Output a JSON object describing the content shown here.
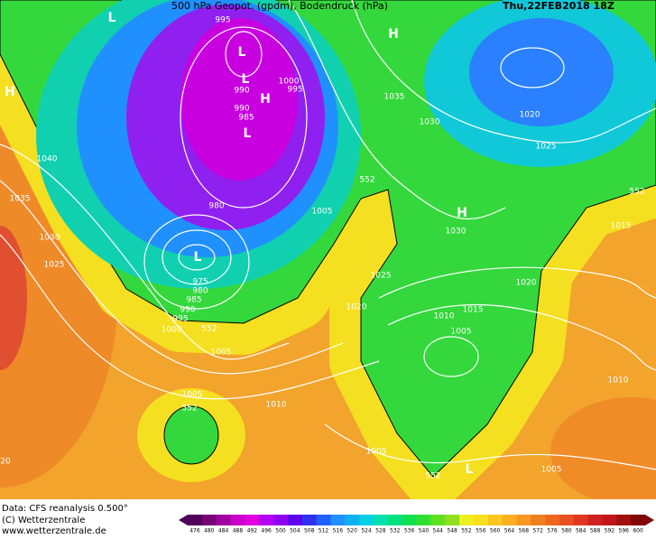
{
  "header": {
    "title": "500 hPa Geopot. (gpdm), Bodendruck (hPa)",
    "date": "Thu,22FEB2018 18Z"
  },
  "isobar_labels": [
    "995",
    "990",
    "1000",
    "995",
    "990",
    "985",
    "980",
    "1040",
    "1035",
    "1030",
    "1025",
    "975",
    "980",
    "985",
    "990",
    "995",
    "1000",
    "552",
    "1005",
    "1005",
    "552",
    "1035",
    "1030",
    "1020",
    "1025",
    "552",
    "1015",
    "1030",
    "1025",
    "1020",
    "1020",
    "1015",
    "1010",
    "1005",
    "1005",
    "552",
    "1010",
    "1010",
    "1005",
    "1005",
    "552",
    "20"
  ],
  "pressure_centers": [
    "L",
    "L",
    "L",
    "H",
    "L",
    "L",
    "H",
    "H",
    "H",
    "L"
  ],
  "footer": {
    "source": "Data: CFS reanalysis 0.500°",
    "copyright": "(C) Wetterzentrale",
    "url": "www.wetterzentrale.de"
  },
  "scale": {
    "values": [
      476,
      480,
      484,
      488,
      492,
      496,
      500,
      504,
      508,
      512,
      516,
      520,
      524,
      528,
      532,
      536,
      540,
      544,
      548,
      552,
      556,
      560,
      564,
      568,
      572,
      576,
      580,
      584,
      588,
      592,
      596,
      600
    ],
    "colors": [
      "#50005a",
      "#780078",
      "#a000a0",
      "#c800c8",
      "#e000e0",
      "#b400f0",
      "#9000f0",
      "#6000f0",
      "#3030f0",
      "#2060ff",
      "#2090ff",
      "#10b0f0",
      "#00d0e0",
      "#00e0b0",
      "#00e080",
      "#10e050",
      "#30e030",
      "#60e020",
      "#90e020",
      "#f0f020",
      "#f8e020",
      "#f8c820",
      "#f8b020",
      "#f89820",
      "#f08020",
      "#f06820",
      "#e85020",
      "#e03820",
      "#d02020",
      "#c01818",
      "#a01010",
      "#800808"
    ]
  }
}
